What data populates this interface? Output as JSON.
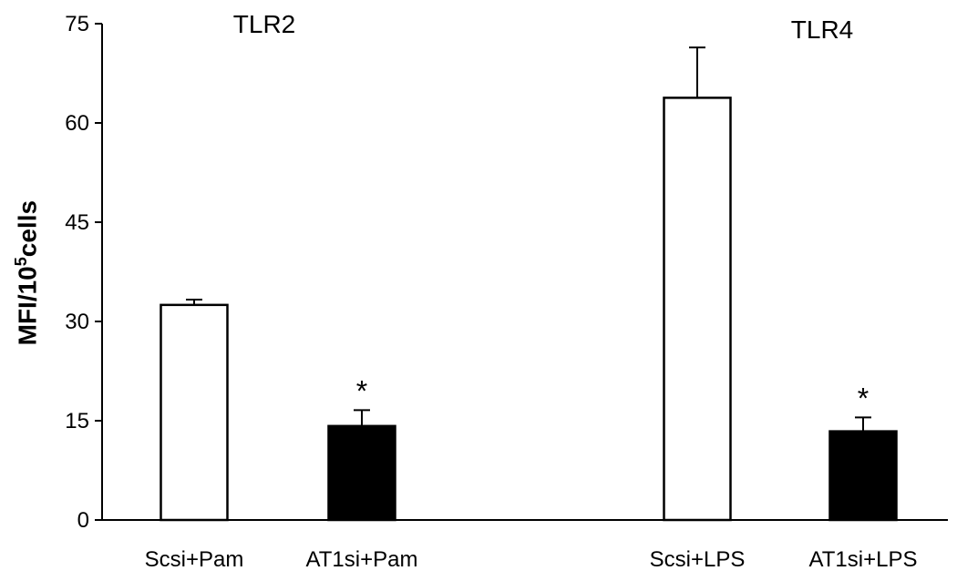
{
  "chart_data": {
    "type": "bar",
    "ylabel": {
      "prefix": "MFI/10",
      "sup": "5",
      "suffix": "cells"
    },
    "ylim": [
      0,
      75
    ],
    "yticks": [
      0,
      15,
      30,
      45,
      60,
      75
    ],
    "groups": [
      "TLR2",
      "TLR4"
    ],
    "bars": [
      {
        "label": "Scsi+Pam",
        "group": "TLR2",
        "value": 32.5,
        "error": 0.8,
        "fill": "#ffffff",
        "annotation": ""
      },
      {
        "label": "AT1si+Pam",
        "group": "TLR2",
        "value": 14.2,
        "error": 2.4,
        "fill": "#000000",
        "annotation": "*"
      },
      {
        "label": "Scsi+LPS",
        "group": "TLR4",
        "value": 63.8,
        "error": 7.6,
        "fill": "#ffffff",
        "annotation": ""
      },
      {
        "label": "AT1si+LPS",
        "group": "TLR4",
        "value": 13.4,
        "error": 2.1,
        "fill": "#000000",
        "annotation": "*"
      }
    ]
  }
}
